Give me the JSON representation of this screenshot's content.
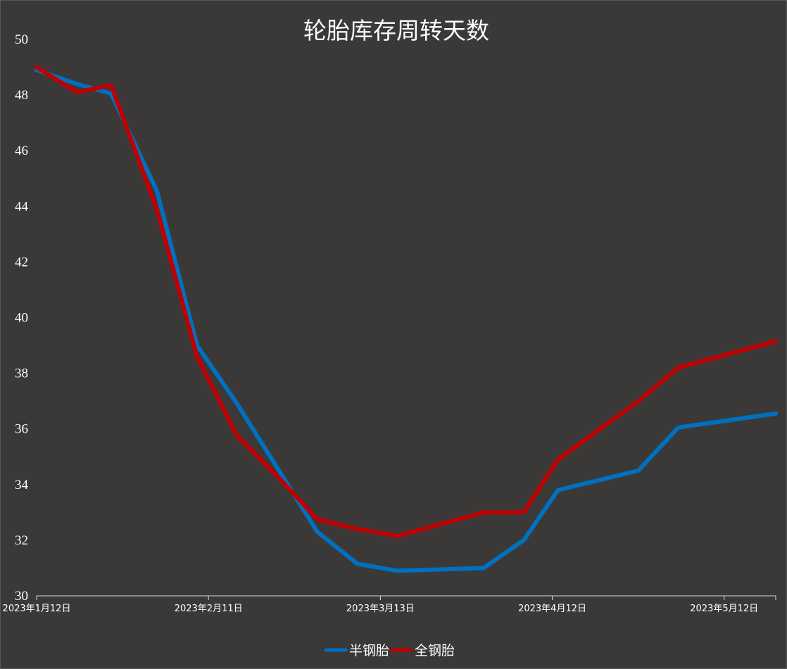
{
  "chart_data": {
    "type": "line",
    "title": "轮胎库存周转天数",
    "xlabel": "",
    "ylabel": "",
    "ylim": [
      30,
      50
    ],
    "yticks": [
      "30",
      "32",
      "34",
      "36",
      "38",
      "40",
      "42",
      "44",
      "46",
      "48",
      "50"
    ],
    "xlim": [
      "2023-01-12",
      "2023-05-21"
    ],
    "xticks": [
      {
        "date": "2023-01-12",
        "label": "2023年1月12日"
      },
      {
        "date": "2023-02-11",
        "label": "2023年2月11日"
      },
      {
        "date": "2023-03-13",
        "label": "2023年3月13日"
      },
      {
        "date": "2023-04-12",
        "label": "2023年4月12日"
      },
      {
        "date": "2023-05-12",
        "label": "2023年5月12日"
      }
    ],
    "grid": false,
    "legend": "bottom",
    "series": [
      {
        "name": "半钢胎",
        "color": "#0070c0",
        "points": [
          [
            "2023-01-12",
            48.9
          ],
          [
            "2023-01-19",
            48.4
          ],
          [
            "2023-01-25",
            48.05
          ],
          [
            "2023-02-02",
            44.55
          ],
          [
            "2023-02-09",
            39.0
          ],
          [
            "2023-02-16",
            36.9
          ],
          [
            "2023-02-23",
            34.6
          ],
          [
            "2023-03-02",
            32.3
          ],
          [
            "2023-03-09",
            31.15
          ],
          [
            "2023-03-16",
            30.9
          ],
          [
            "2023-03-31",
            31.0
          ],
          [
            "2023-04-07",
            32.0
          ],
          [
            "2023-04-13",
            33.8
          ],
          [
            "2023-04-27",
            34.5
          ],
          [
            "2023-05-04",
            36.05
          ],
          [
            "2023-05-21",
            36.55
          ]
        ]
      },
      {
        "name": "全钢胎",
        "color": "#c00000",
        "points": [
          [
            "2023-01-12",
            49.0
          ],
          [
            "2023-01-19",
            48.1
          ],
          [
            "2023-01-25",
            48.35
          ],
          [
            "2023-02-02",
            43.9
          ],
          [
            "2023-02-09",
            38.6
          ],
          [
            "2023-02-16",
            35.75
          ],
          [
            "2023-02-23",
            34.3
          ],
          [
            "2023-03-02",
            32.75
          ],
          [
            "2023-03-09",
            32.4
          ],
          [
            "2023-03-16",
            32.15
          ],
          [
            "2023-03-31",
            33.0
          ],
          [
            "2023-04-07",
            33.0
          ],
          [
            "2023-04-13",
            34.9
          ],
          [
            "2023-04-27",
            37.0
          ],
          [
            "2023-05-04",
            38.2
          ],
          [
            "2023-05-21",
            39.15
          ]
        ]
      }
    ]
  }
}
